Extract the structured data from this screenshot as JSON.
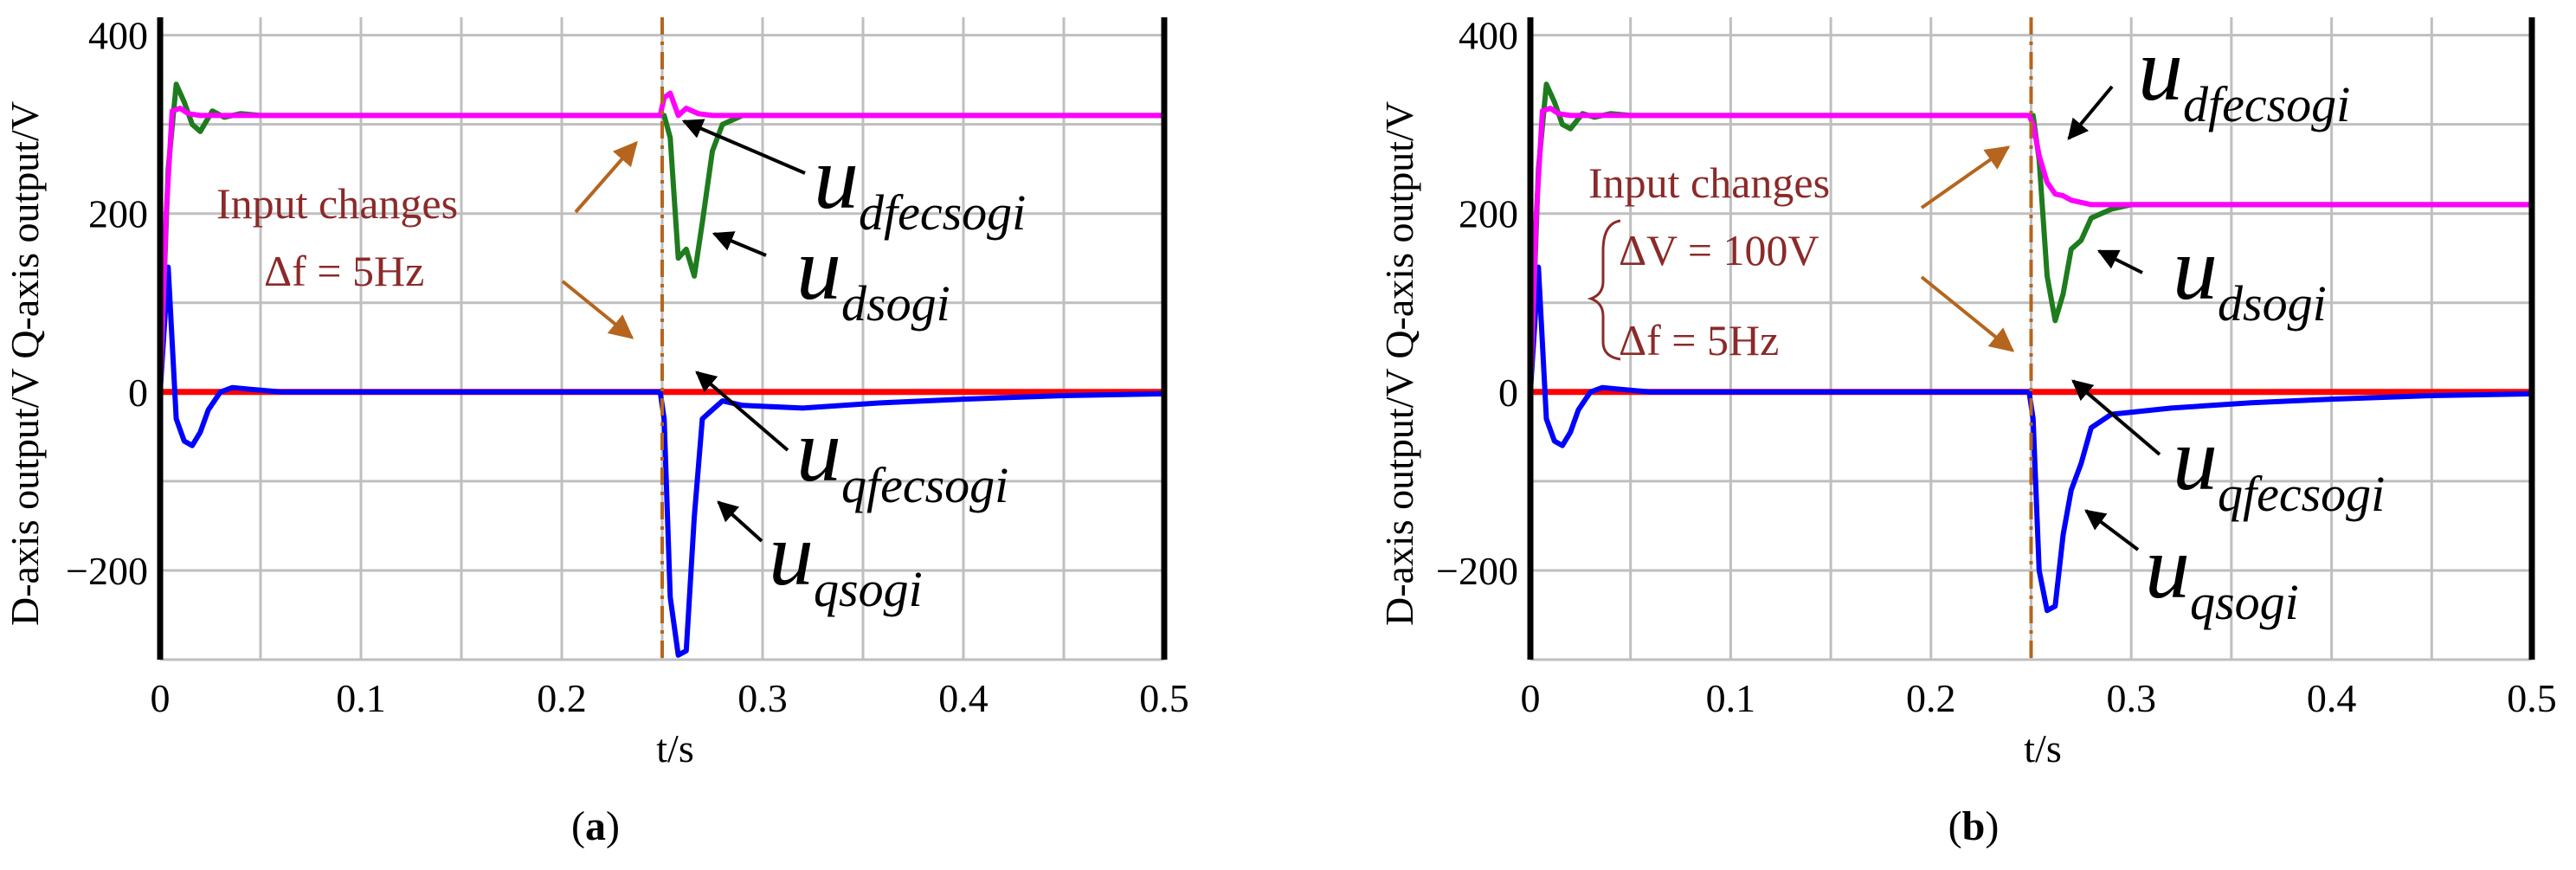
{
  "chart_data": [
    {
      "type": "line",
      "panel_label": "(a)",
      "caption_open": "(",
      "caption_letter": "a",
      "caption_close": ")",
      "xlabel": "t/s",
      "ylabel": "D-axis output/V Q-axis output/V",
      "xlim": [
        0,
        0.5
      ],
      "ylim": [
        -300,
        420
      ],
      "xticks": [
        0,
        0.1,
        0.2,
        0.3,
        0.4,
        0.5
      ],
      "xtick_labels": [
        "0",
        "0.1",
        "0.2",
        "0.3",
        "0.4",
        "0.5"
      ],
      "yticks": [
        400,
        200,
        0,
        -200
      ],
      "ytick_labels": [
        "400",
        "200",
        "0",
        "−200"
      ],
      "event_time": 0.25,
      "annotation": {
        "line1": "Input changes",
        "line2": "Δf = 5Hz"
      },
      "series": [
        {
          "name": "u_dsogi",
          "color": "#1e7b1e",
          "x": [
            0,
            0.004,
            0.008,
            0.012,
            0.016,
            0.02,
            0.026,
            0.032,
            0.04,
            0.05,
            0.06,
            0.1,
            0.2,
            0.249,
            0.251,
            0.254,
            0.258,
            0.262,
            0.266,
            0.27,
            0.275,
            0.28,
            0.29,
            0.3,
            0.5
          ],
          "y": [
            0,
            250,
            345,
            325,
            300,
            292,
            315,
            308,
            312,
            310,
            310,
            310,
            310,
            310,
            310,
            285,
            150,
            160,
            130,
            190,
            270,
            300,
            310,
            310,
            310
          ]
        },
        {
          "name": "u_dfecsogi",
          "color": "#ff00ff",
          "x": [
            0,
            0.003,
            0.006,
            0.01,
            0.014,
            0.02,
            0.03,
            0.05,
            0.1,
            0.2,
            0.249,
            0.251,
            0.254,
            0.258,
            0.262,
            0.268,
            0.275,
            0.3,
            0.5
          ],
          "y": [
            0,
            200,
            315,
            318,
            312,
            310,
            310,
            310,
            310,
            310,
            310,
            330,
            335,
            310,
            318,
            312,
            310,
            310,
            310
          ]
        },
        {
          "name": "u_qsogi",
          "color": "#0000ff",
          "x": [
            0,
            0.004,
            0.008,
            0.012,
            0.016,
            0.02,
            0.024,
            0.03,
            0.036,
            0.045,
            0.06,
            0.1,
            0.2,
            0.249,
            0.251,
            0.254,
            0.258,
            0.262,
            0.266,
            0.27,
            0.275,
            0.28,
            0.29,
            0.32,
            0.36,
            0.4,
            0.45,
            0.5
          ],
          "y": [
            0,
            140,
            -30,
            -55,
            -60,
            -45,
            -20,
            0,
            5,
            3,
            0,
            0,
            0,
            0,
            -30,
            -230,
            -295,
            -290,
            -140,
            -30,
            -20,
            -10,
            -15,
            -18,
            -12,
            -8,
            -4,
            -2
          ]
        },
        {
          "name": "u_qfecsogi",
          "color": "#ff0000",
          "x": [
            0,
            0.5
          ],
          "y": [
            0,
            0
          ]
        }
      ],
      "labels": [
        {
          "base": "u",
          "sub": "dfecsogi"
        },
        {
          "base": "u",
          "sub": "dsogi"
        },
        {
          "base": "u",
          "sub": "qfecsogi"
        },
        {
          "base": "u",
          "sub": "qsogi"
        }
      ]
    },
    {
      "type": "line",
      "panel_label": "(b)",
      "caption_open": "(",
      "caption_letter": "b",
      "caption_close": ")",
      "xlabel": "t/s",
      "ylabel": "D-axis output/V Q-axis output/V",
      "xlim": [
        0,
        0.5
      ],
      "ylim": [
        -300,
        420
      ],
      "xticks": [
        0,
        0.1,
        0.2,
        0.3,
        0.4,
        0.5
      ],
      "xtick_labels": [
        "0",
        "0.1",
        "0.2",
        "0.3",
        "0.4",
        "0.5"
      ],
      "yticks": [
        400,
        200,
        0,
        -200
      ],
      "ytick_labels": [
        "400",
        "200",
        "0",
        "−200"
      ],
      "event_time": 0.25,
      "annotation": {
        "line1": "Input changes",
        "line2": "ΔV = 100V",
        "line3": "Δf = 5Hz"
      },
      "series": [
        {
          "name": "u_dsogi",
          "color": "#1e7b1e",
          "x": [
            0,
            0.004,
            0.008,
            0.012,
            0.016,
            0.02,
            0.026,
            0.032,
            0.04,
            0.05,
            0.06,
            0.1,
            0.2,
            0.249,
            0.251,
            0.254,
            0.258,
            0.262,
            0.266,
            0.27,
            0.275,
            0.28,
            0.29,
            0.3,
            0.32,
            0.5
          ],
          "y": [
            0,
            250,
            345,
            325,
            300,
            295,
            312,
            308,
            312,
            310,
            310,
            310,
            310,
            310,
            310,
            260,
            130,
            80,
            110,
            160,
            170,
            195,
            205,
            210,
            210,
            210
          ]
        },
        {
          "name": "u_dfecsogi",
          "color": "#ff00ff",
          "x": [
            0,
            0.003,
            0.006,
            0.01,
            0.014,
            0.02,
            0.03,
            0.05,
            0.1,
            0.2,
            0.249,
            0.251,
            0.254,
            0.258,
            0.262,
            0.266,
            0.27,
            0.28,
            0.3,
            0.5
          ],
          "y": [
            0,
            200,
            315,
            318,
            312,
            310,
            310,
            310,
            310,
            310,
            310,
            300,
            265,
            235,
            222,
            220,
            215,
            210,
            210,
            210
          ]
        },
        {
          "name": "u_qsogi",
          "color": "#0000ff",
          "x": [
            0,
            0.004,
            0.008,
            0.012,
            0.016,
            0.02,
            0.024,
            0.03,
            0.036,
            0.045,
            0.06,
            0.1,
            0.2,
            0.249,
            0.251,
            0.254,
            0.258,
            0.262,
            0.266,
            0.27,
            0.275,
            0.28,
            0.29,
            0.32,
            0.36,
            0.4,
            0.45,
            0.5
          ],
          "y": [
            0,
            140,
            -30,
            -55,
            -60,
            -45,
            -20,
            0,
            5,
            3,
            0,
            0,
            0,
            0,
            -30,
            -200,
            -245,
            -240,
            -160,
            -110,
            -80,
            -40,
            -25,
            -18,
            -12,
            -8,
            -4,
            -2
          ]
        },
        {
          "name": "u_qfecsogi",
          "color": "#ff0000",
          "x": [
            0,
            0.5
          ],
          "y": [
            0,
            0
          ]
        }
      ],
      "labels": [
        {
          "base": "u",
          "sub": "dfecsogi"
        },
        {
          "base": "u",
          "sub": "dsogi"
        },
        {
          "base": "u",
          "sub": "qfecsogi"
        },
        {
          "base": "u",
          "sub": "qsogi"
        }
      ]
    }
  ],
  "colors": {
    "grid": "#bfbfbf",
    "event_line": "#b5651d",
    "arrow_brown": "#b5651d",
    "annotation_text": "#8b2a2a"
  }
}
